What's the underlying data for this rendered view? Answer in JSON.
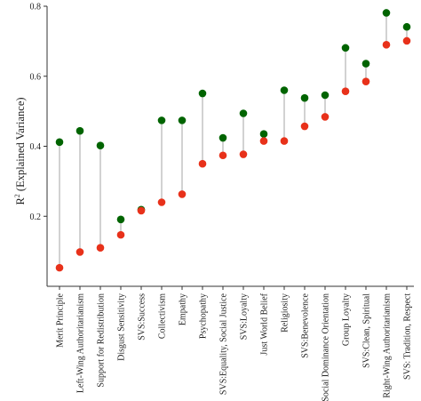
{
  "chart_data": {
    "type": "dumbbell",
    "ylabel": "R",
    "ylabel_sup": "2",
    "ylabel_rest": " (Explained Variance)",
    "ylim": [
      0,
      0.8
    ],
    "yticks": [
      "0.2",
      "0.4",
      "0.6",
      "0.8"
    ],
    "ytick_values": [
      0.2,
      0.4,
      0.6,
      0.8
    ],
    "grid": false,
    "legend": "none",
    "colors": {
      "green": "#006400",
      "red": "#e8311a",
      "connector": "#b3b3b3",
      "axis": "#333333"
    },
    "categories": [
      "Merit Principle",
      "Left-Wing Authoritarianism",
      "Support for Redistribution",
      "Disgust Sensitivity",
      "SVS:Success",
      "Collectivism",
      "Empathy",
      "Psychopathy",
      "SVS:Equality, Social Justice",
      "SVS:Loyalty",
      "Just World Belief",
      "Religiosity",
      "SVS:Benevolence",
      "Social Dominance Orientation",
      "Group Loyalty",
      "SVS:Clean, Spiritual",
      "Right-Wing Authoritarianism",
      "SVS: Tradition, Respect"
    ],
    "series": [
      {
        "color": "green",
        "values": [
          0.412,
          0.444,
          0.402,
          0.191,
          0.219,
          0.474,
          0.474,
          0.551,
          0.424,
          0.494,
          0.435,
          0.56,
          0.538,
          0.546,
          0.681,
          0.636,
          0.781,
          0.741
        ]
      },
      {
        "color": "red",
        "values": [
          0.053,
          0.098,
          0.11,
          0.147,
          0.216,
          0.24,
          0.263,
          0.35,
          0.374,
          0.377,
          0.415,
          0.415,
          0.457,
          0.484,
          0.557,
          0.585,
          0.69,
          0.701
        ]
      }
    ]
  }
}
